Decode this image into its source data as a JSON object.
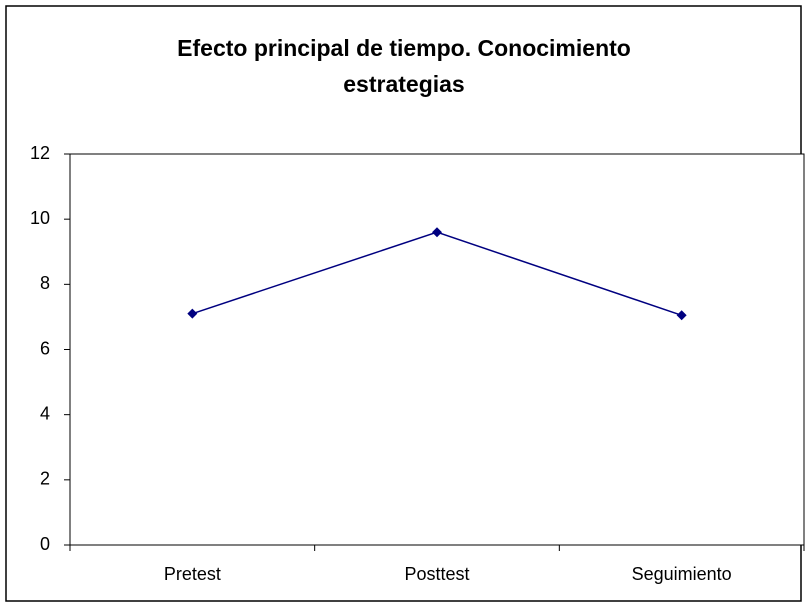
{
  "chart_data": {
    "type": "line",
    "title": "Efecto principal de tiempo. Conocimiento estrategias",
    "categories": [
      "Pretest",
      "Posttest",
      "Seguimiento"
    ],
    "series": [
      {
        "color": "#000080",
        "values": [
          7.1,
          9.6,
          7.05
        ]
      }
    ],
    "ylim": [
      0,
      12
    ],
    "yticks": [
      0,
      2,
      4,
      6,
      8,
      10,
      12
    ],
    "grid": false
  }
}
